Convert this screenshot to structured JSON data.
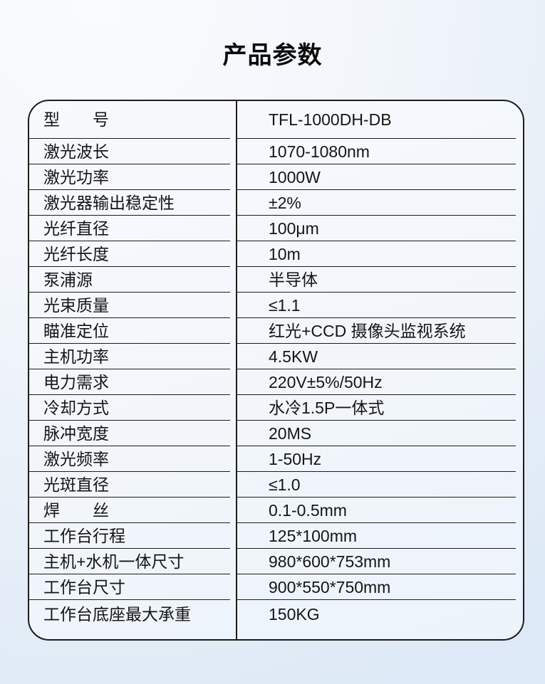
{
  "page": {
    "title": "产品参数"
  },
  "colors": {
    "border": "#1c1c1c",
    "text": "#151515",
    "page_bg_light": "#fafbfe",
    "page_bg_blue": "#dde9f6",
    "table_bg": "#f2f6fb"
  },
  "table": {
    "rows": [
      {
        "label": "型　　号",
        "value": "TFL-1000DH-DB"
      },
      {
        "label": "激光波长",
        "value": "1070-1080nm"
      },
      {
        "label": "激光功率",
        "value": "1000W"
      },
      {
        "label": "激光器输出稳定性",
        "value": "±2%"
      },
      {
        "label": "光纤直径",
        "value": "100μm"
      },
      {
        "label": "光纤长度",
        "value": "10m"
      },
      {
        "label": "泵浦源",
        "value": "半导体"
      },
      {
        "label": "光束质量",
        "value": "≤1.1"
      },
      {
        "label": "瞄准定位",
        "value": "红光+CCD 摄像头监视系统"
      },
      {
        "label": "主机功率",
        "value": "4.5KW"
      },
      {
        "label": "电力需求",
        "value": "220V±5%/50Hz"
      },
      {
        "label": "冷却方式",
        "value": "水冷1.5P一体式"
      },
      {
        "label": "脉冲宽度",
        "value": "20MS"
      },
      {
        "label": "激光频率",
        "value": "1-50Hz"
      },
      {
        "label": "光斑直径",
        "value": "≤1.0"
      },
      {
        "label": "焊　　丝",
        "value": "0.1-0.5mm"
      },
      {
        "label": "工作台行程",
        "value": "125*100mm"
      },
      {
        "label": "主机+水机一体尺寸",
        "value": "980*600*753mm"
      },
      {
        "label": "工作台尺寸",
        "value": "900*550*750mm"
      },
      {
        "label": "工作台底座最大承重",
        "value": "150KG"
      }
    ]
  }
}
